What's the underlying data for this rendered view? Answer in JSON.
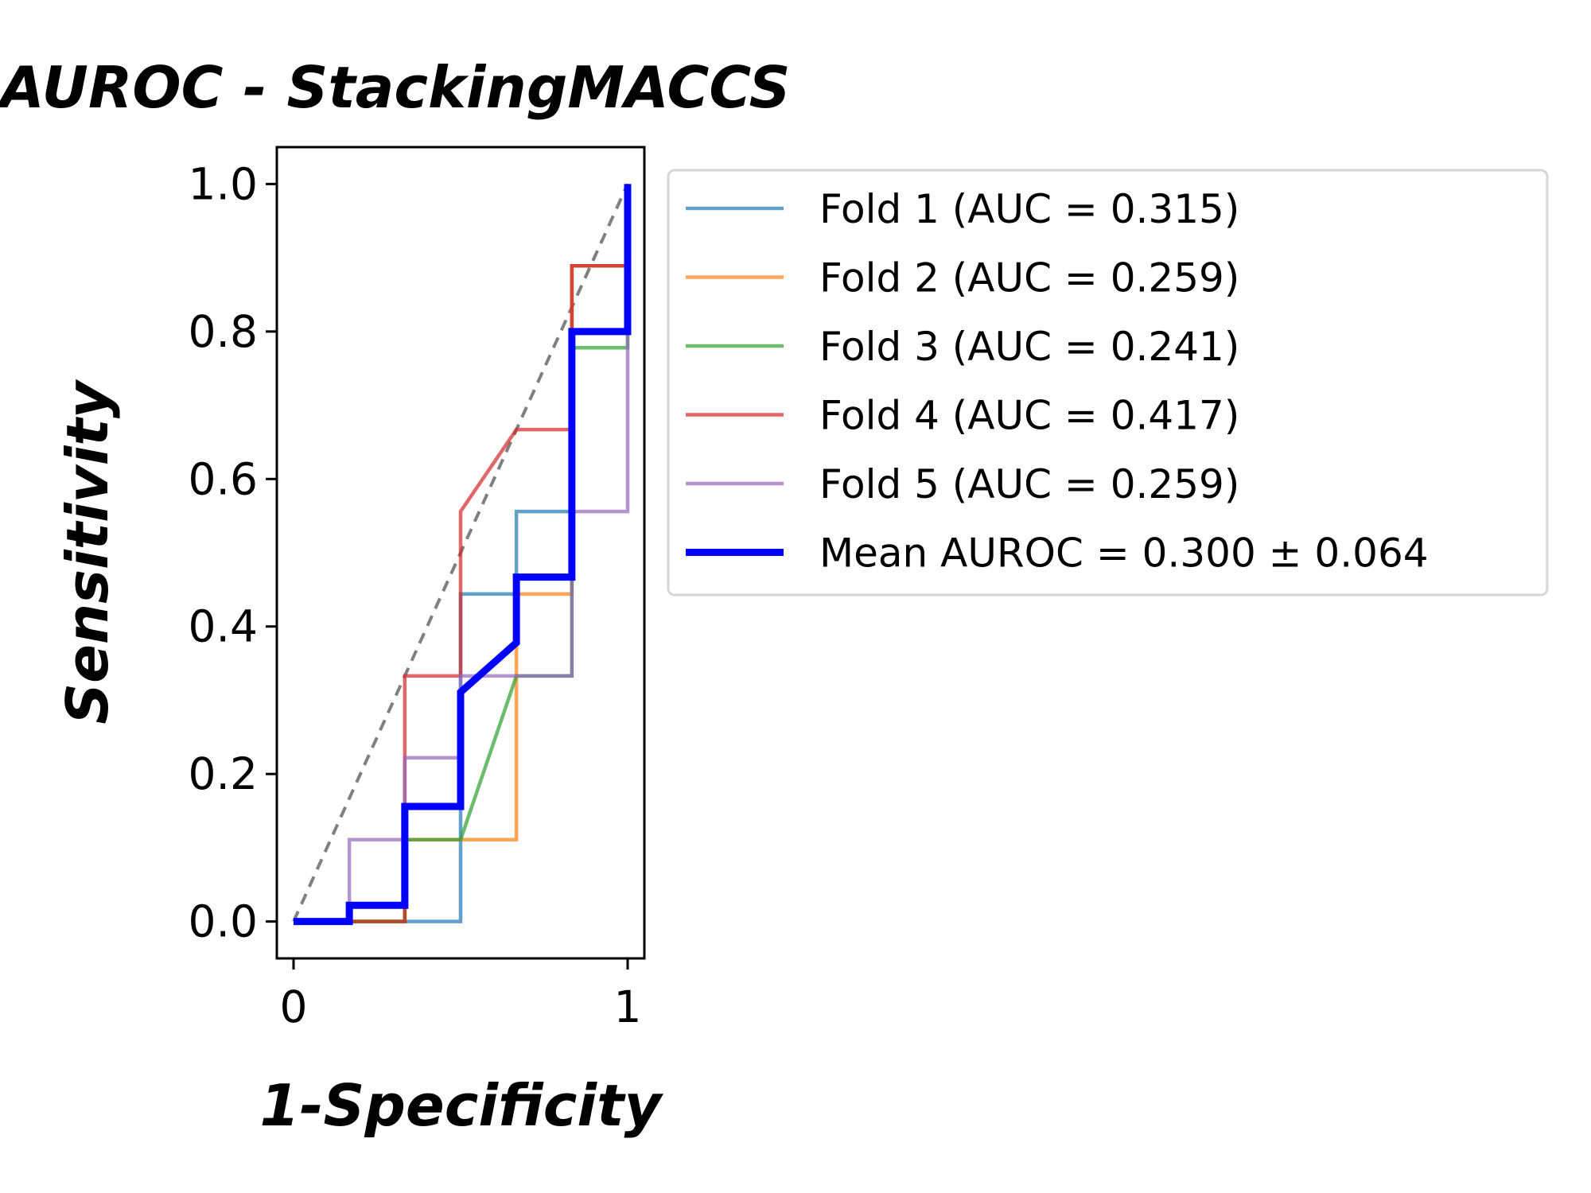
{
  "chart_data": {
    "type": "line",
    "title": "AUROC - StackingMACCS",
    "xlabel": "1-Specificity",
    "ylabel": "Sensitivity",
    "xlim": [
      -0.05,
      1.05
    ],
    "ylim": [
      -0.05,
      1.05
    ],
    "xticks": [
      0,
      1
    ],
    "xtick_labels": [
      "0",
      "1"
    ],
    "yticks": [
      0.0,
      0.2,
      0.4,
      0.6,
      0.8,
      1.0
    ],
    "ytick_labels": [
      "0.0",
      "0.2",
      "0.4",
      "0.6",
      "0.8",
      "1.0"
    ],
    "grid": false,
    "legend_position": "outside-right-top",
    "series": [
      {
        "name": "Fold 1 (AUC = 0.315)",
        "color": "#1f77b4",
        "x": [
          0,
          0.5,
          0.5,
          0.5,
          0.667,
          0.667,
          0.833,
          0.833,
          1,
          1
        ],
        "y": [
          0,
          0,
          0.333,
          0.444,
          0.444,
          0.556,
          0.556,
          0.889,
          0.889,
          1.0
        ]
      },
      {
        "name": "Fold 2 (AUC = 0.259)",
        "color": "#ff7f0e",
        "x": [
          0,
          0.333,
          0.333,
          0.667,
          0.667,
          0.833,
          0.833,
          1,
          1
        ],
        "y": [
          0,
          0,
          0.111,
          0.111,
          0.444,
          0.444,
          0.889,
          0.889,
          1.0
        ]
      },
      {
        "name": "Fold 3 (AUC = 0.241)",
        "color": "#2ca02c",
        "x": [
          0,
          0.333,
          0.333,
          0.5,
          0.667,
          0.833,
          0.833,
          1,
          1
        ],
        "y": [
          0,
          0,
          0.111,
          0.111,
          0.333,
          0.333,
          0.778,
          0.778,
          1.0
        ]
      },
      {
        "name": "Fold 4 (AUC = 0.417)",
        "color": "#d62728",
        "x": [
          0,
          0.333,
          0.333,
          0.5,
          0.5,
          0.667,
          0.833,
          0.833,
          1,
          1
        ],
        "y": [
          0,
          0,
          0.333,
          0.333,
          0.556,
          0.667,
          0.667,
          0.889,
          0.889,
          1.0
        ]
      },
      {
        "name": "Fold 5 (AUC = 0.259)",
        "color": "#9467bd",
        "x": [
          0,
          0.167,
          0.167,
          0.333,
          0.333,
          0.5,
          0.5,
          0.833,
          0.833,
          1,
          1
        ],
        "y": [
          0,
          0,
          0.111,
          0.111,
          0.222,
          0.222,
          0.333,
          0.333,
          0.556,
          0.556,
          1.0
        ]
      },
      {
        "name": "Mean AUROC = 0.300 ± 0.064",
        "color": "#0000ff",
        "x": [
          0,
          0.167,
          0.167,
          0.333,
          0.333,
          0.5,
          0.5,
          0.667,
          0.667,
          0.833,
          0.833,
          1,
          1
        ],
        "y": [
          0,
          0,
          0.022,
          0.022,
          0.156,
          0.156,
          0.311,
          0.378,
          0.467,
          0.467,
          0.8,
          0.8,
          1.0
        ]
      }
    ],
    "reference_line": {
      "x": [
        0,
        1
      ],
      "y": [
        0,
        1
      ],
      "color": "#808080",
      "style": "dashed"
    }
  }
}
